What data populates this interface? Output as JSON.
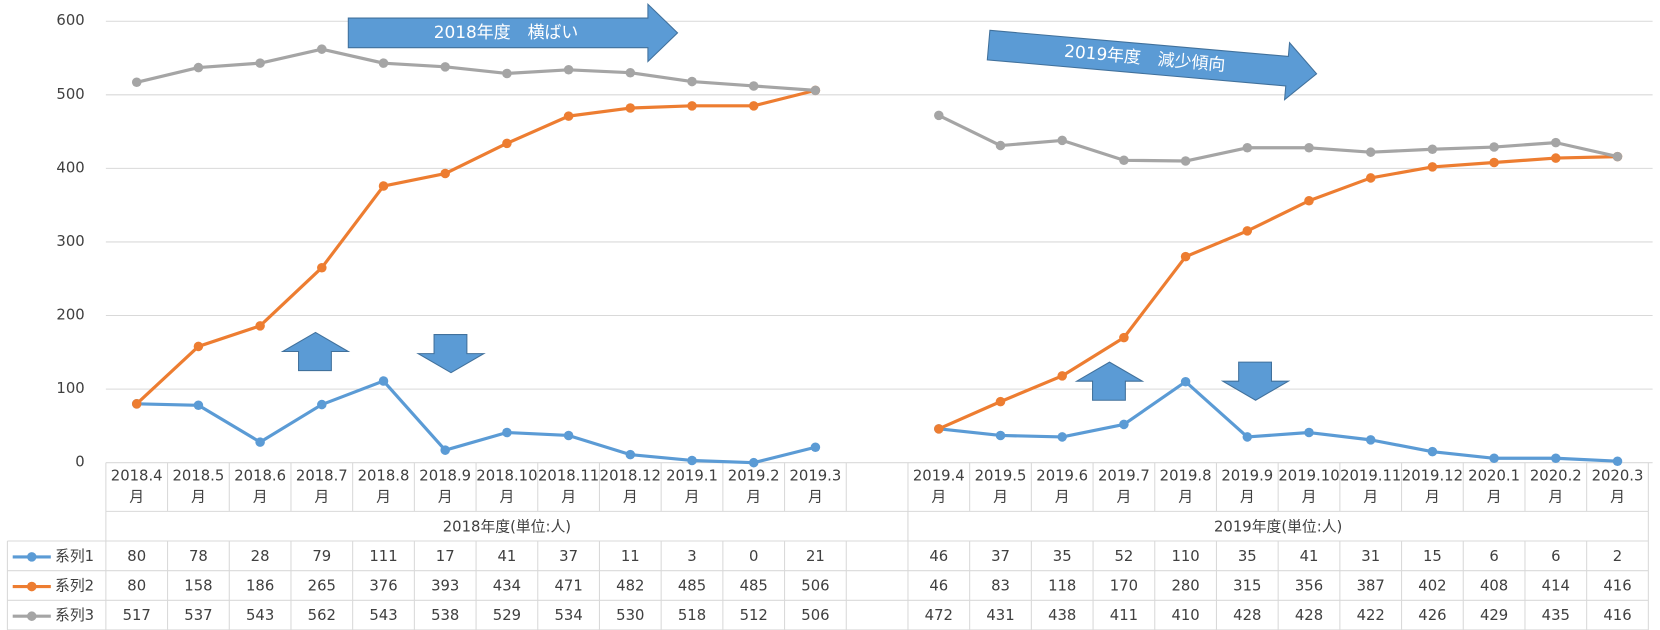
{
  "chart_data": {
    "type": "line",
    "categories": [
      "2018.4月",
      "2018.5月",
      "2018.6月",
      "2018.7月",
      "2018.8月",
      "2018.9月",
      "2018.10月",
      "2018.11月",
      "2018.12月",
      "2019.1月",
      "2019.2月",
      "2019.3月",
      null,
      "2019.4月",
      "2019.5月",
      "2019.6月",
      "2019.7月",
      "2019.8月",
      "2019.9月",
      "2019.10月",
      "2019.11月",
      "2019.12月",
      "2020.1月",
      "2020.2月",
      "2020.3月"
    ],
    "groups": [
      "2018年度(単位:人)",
      "2019年度(単位:人)"
    ],
    "series": [
      {
        "name": "系列1",
        "color": "#5b9bd5",
        "values": [
          80,
          78,
          28,
          79,
          111,
          17,
          41,
          37,
          11,
          3,
          0,
          21,
          null,
          46,
          37,
          35,
          52,
          110,
          35,
          41,
          31,
          15,
          6,
          6,
          2
        ]
      },
      {
        "name": "系列2",
        "color": "#ed7d31",
        "values": [
          80,
          158,
          186,
          265,
          376,
          393,
          434,
          471,
          482,
          485,
          485,
          506,
          null,
          46,
          83,
          118,
          170,
          280,
          315,
          356,
          387,
          402,
          408,
          414,
          416
        ]
      },
      {
        "name": "系列3",
        "color": "#a5a5a5",
        "values": [
          517,
          537,
          543,
          562,
          543,
          538,
          529,
          534,
          530,
          518,
          512,
          506,
          null,
          472,
          431,
          438,
          411,
          410,
          428,
          428,
          422,
          426,
          429,
          435,
          416
        ]
      }
    ],
    "ylim": [
      0,
      600
    ],
    "yticks": [
      0,
      100,
      200,
      300,
      400,
      500,
      600
    ],
    "grid": true,
    "annotations": [
      "2018年度　横ばい",
      "2019年度　減少傾向"
    ]
  }
}
